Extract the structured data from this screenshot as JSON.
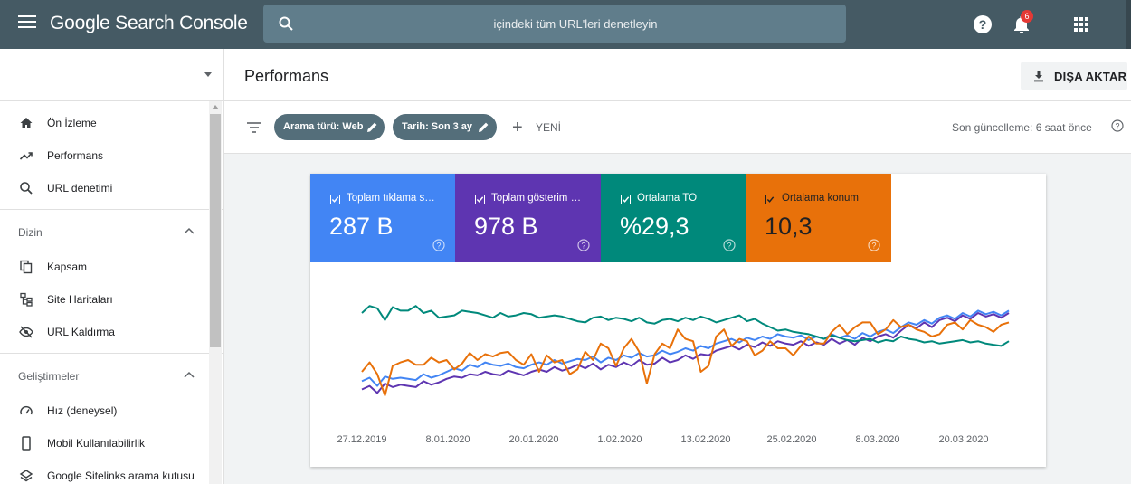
{
  "app": {
    "title": "Google Search Console",
    "search_placeholder": "içindeki tüm URL'leri denetleyin",
    "notification_count": "6"
  },
  "sidebar": {
    "items_top": [
      {
        "label": "Ön İzleme",
        "icon": "home-icon"
      },
      {
        "label": "Performans",
        "icon": "trending-icon"
      },
      {
        "label": "URL denetimi",
        "icon": "search-icon"
      }
    ],
    "section_index": {
      "title": "Dizin",
      "items": [
        {
          "label": "Kapsam",
          "icon": "copy-icon"
        },
        {
          "label": "Site Haritaları",
          "icon": "sitemap-icon"
        },
        {
          "label": "URL Kaldırma",
          "icon": "eye-off-icon"
        }
      ]
    },
    "section_enhancements": {
      "title": "Geliştirmeler",
      "items": [
        {
          "label": "Hız (deneysel)",
          "icon": "speed-icon"
        },
        {
          "label": "Mobil Kullanılabilirlik",
          "icon": "phone-icon"
        },
        {
          "label": "Google Sitelinks arama kutusu",
          "icon": "layers-icon"
        }
      ]
    }
  },
  "header": {
    "title": "Performans",
    "export_label": "DIŞA AKTAR"
  },
  "filters": {
    "chip_search_type": "Arama türü: Web",
    "chip_date": "Tarih: Son 3 ay",
    "new_label": "YENİ",
    "last_update": "Son güncelleme: 6 saat önce"
  },
  "metrics": [
    {
      "label": "Toplam tıklama sayısı",
      "value": "287 B",
      "color": "#4285f4",
      "checked": true
    },
    {
      "label": "Toplam gösterim sayısı",
      "value": "978 B",
      "color": "#5e35b1",
      "checked": true
    },
    {
      "label": "Ortalama TO",
      "value": "%29,3",
      "color": "#00897b",
      "checked": true
    },
    {
      "label": "Ortalama konum",
      "value": "10,3",
      "color": "#e8710a",
      "checked": true
    }
  ],
  "chart_data": {
    "type": "line",
    "x_tick_labels": [
      "27.12.2019",
      "8.01.2020",
      "20.01.2020",
      "1.02.2020",
      "13.02.2020",
      "25.02.2020",
      "8.03.2020",
      "20.03.2020"
    ],
    "y_axis_visible": false,
    "grid": false,
    "y_range_normalized": [
      0,
      100
    ],
    "series": [
      {
        "name": "Toplam tıklama sayısı",
        "color": "#4285f4",
        "values": [
          22,
          25,
          18,
          26,
          24,
          25,
          24,
          23,
          28,
          25,
          27,
          30,
          33,
          31,
          36,
          34,
          38,
          36,
          35,
          37,
          34,
          33,
          36,
          38,
          36,
          40,
          37,
          39,
          41,
          40,
          43,
          38,
          42,
          40,
          44,
          42,
          46,
          43,
          44,
          48,
          45,
          47,
          50,
          48,
          52,
          50,
          54,
          56,
          58,
          55,
          59,
          57,
          60,
          58,
          62,
          60,
          59,
          61,
          57,
          60,
          58,
          62,
          59,
          61,
          58,
          63,
          60,
          64,
          66,
          63,
          68,
          72,
          70,
          74,
          71,
          76,
          78,
          75,
          80,
          77,
          82,
          79,
          81,
          78,
          82
        ]
      },
      {
        "name": "Toplam gösterim sayısı",
        "color": "#5e35b1",
        "values": [
          15,
          18,
          12,
          20,
          17,
          19,
          18,
          17,
          22,
          19,
          21,
          24,
          26,
          25,
          28,
          27,
          30,
          28,
          27,
          31,
          29,
          27,
          30,
          32,
          30,
          34,
          31,
          33,
          36,
          33,
          37,
          32,
          36,
          34,
          38,
          35,
          40,
          36,
          37,
          42,
          38,
          40,
          44,
          41,
          45,
          44,
          48,
          50,
          52,
          49,
          53,
          51,
          55,
          52,
          56,
          54,
          53,
          56,
          52,
          55,
          53,
          58,
          54,
          57,
          53,
          59,
          56,
          60,
          62,
          59,
          65,
          70,
          67,
          72,
          68,
          74,
          76,
          73,
          78,
          75,
          80,
          77,
          79,
          76,
          80
        ]
      },
      {
        "name": "Ortalama TO",
        "color": "#00897b",
        "values": [
          80,
          86,
          84,
          74,
          85,
          82,
          82,
          86,
          80,
          82,
          76,
          77,
          78,
          82,
          81,
          80,
          78,
          76,
          80,
          77,
          78,
          80,
          79,
          76,
          77,
          78,
          77,
          75,
          73,
          72,
          76,
          77,
          74,
          76,
          75,
          73,
          76,
          72,
          71,
          74,
          75,
          73,
          76,
          74,
          77,
          75,
          72,
          74,
          76,
          78,
          73,
          75,
          71,
          68,
          65,
          66,
          64,
          63,
          62,
          60,
          58,
          61,
          59,
          57,
          56,
          57,
          58,
          55,
          57,
          56,
          60,
          58,
          57,
          55,
          56,
          54,
          55,
          56,
          57,
          55,
          56,
          54,
          53,
          52,
          56
        ]
      },
      {
        "name": "Ortalama konum",
        "color": "#e8710a",
        "values": [
          30,
          38,
          28,
          10,
          35,
          38,
          40,
          36,
          36,
          42,
          38,
          40,
          32,
          37,
          46,
          40,
          45,
          43,
          46,
          47,
          40,
          36,
          45,
          30,
          44,
          38,
          40,
          28,
          32,
          47,
          40,
          54,
          50,
          35,
          50,
          58,
          47,
          20,
          45,
          54,
          50,
          66,
          58,
          56,
          30,
          35,
          60,
          66,
          52,
          58,
          56,
          44,
          48,
          56,
          50,
          50,
          44,
          52,
          60,
          54,
          54,
          64,
          70,
          62,
          68,
          72,
          72,
          62,
          66,
          74,
          68,
          70,
          66,
          64,
          60,
          62,
          70,
          72,
          66,
          74,
          70,
          68,
          64,
          70,
          72
        ]
      }
    ]
  }
}
